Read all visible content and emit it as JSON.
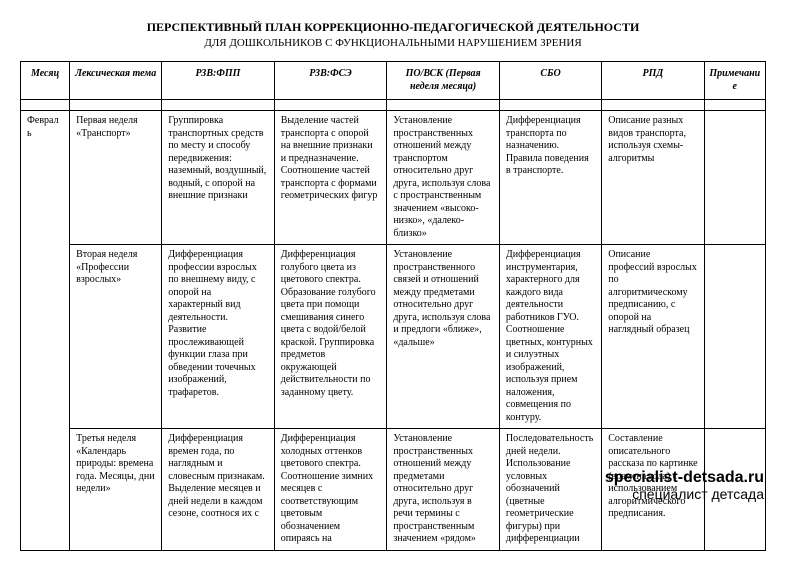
{
  "title": "ПЕРСПЕКТИВНЫЙ ПЛАН КОРРЕКЦИОННО-ПЕДАГОГИЧЕСКОЙ ДЕЯТЕЛЬНОСТИ",
  "subtitle": "ДЛЯ ДОШКОЛЬНИКОВ С ФУНКЦИОНАЛЬНЫМИ НАРУШЕНИЕМ ЗРЕНИЯ",
  "headers": {
    "month": "Месяц",
    "theme": "Лексическая тема",
    "rzv_fpp": "РЗВ:ФПП",
    "rzv_fse": "РЗВ:ФСЭ",
    "po_vsk": "ПО/ВСК (Первая неделя месяца)",
    "sbo": "СБО",
    "rpd": "РПД",
    "note": "Примечание"
  },
  "month_label": "Февраль",
  "rows": [
    {
      "theme": "Первая неделя «Транспорт»",
      "rzv_fpp": "Группировка транспортных средств по месту и способу передвижения: наземный, воздушный, водный, с опорой на внешние признаки",
      "rzv_fse": "Выделение частей транспорта с опорой на внешние признаки и предназначение. Соотношение частей транспорта с формами геометрических фигур",
      "po_vsk": "Установление пространственных отношений между транспортом относительно друг друга, используя слова с пространственным значением «высоко-низко», «далеко-близко»",
      "sbo": "Дифференциация транспорта по назначению. Правила поведения в транспорте.",
      "rpd": "Описание разных видов транспорта, используя схемы-алгоритмы",
      "note": ""
    },
    {
      "theme": "Вторая неделя «Профессии взрослых»",
      "rzv_fpp": "Дифференциация профессии взрослых по внешнему виду, с опорой на характерный вид деятельности. Развитие прослеживающей функции глаза при обведении точечных изображений, трафаретов.",
      "rzv_fse": "Дифференциация голубого цвета из цветового спектра. Образование голубого цвета при помощи смешивания синего цвета с водой/белой краской. Группировка предметов окружающей действительности по заданному цвету.",
      "po_vsk": "Установление пространственного связей и отношений между предметами относительно друг друга, используя слова и предлоги «ближе», «дальше»",
      "sbo": "Дифференциация инструментария, характерного для каждого вида деятельности работников ГУО. Соотношение цветных, контурных и силуэтных изображений, используя прием наложения, совмещения по контуру.",
      "rpd": "Описание профессий взрослых по алгоритмическому предписанию, с опорой на наглядный образец",
      "note": ""
    },
    {
      "theme": "Третья неделя «Календарь природы: времена года. Месяцы, дни недели»",
      "rzv_fpp": "Дифференциация времен года, по наглядным и словесным признакам. Выделение месяцев и дней недели в каждом сезоне, соотнося их с",
      "rzv_fse": "Дифференциация холодных оттенков цветового спектра. Соотношение зимних месяцев с соответствующим цветовым обозначением опираясь на",
      "po_vsk": "Установление пространственных отношений между предметами относительно друг друга, используя в речи термины с пространственным значением «рядом»",
      "sbo": "Последовательность дней недели. Использование условных обозначений (цветные геометрические фигуры) при дифференциации",
      "rpd": "Составление описательного рассказа по картинке (времена года) с использованием алгоритмического предписания.",
      "note": ""
    }
  ],
  "watermark": {
    "line1": "specialist-detsada.ru",
    "line2": "специалист детсада"
  }
}
